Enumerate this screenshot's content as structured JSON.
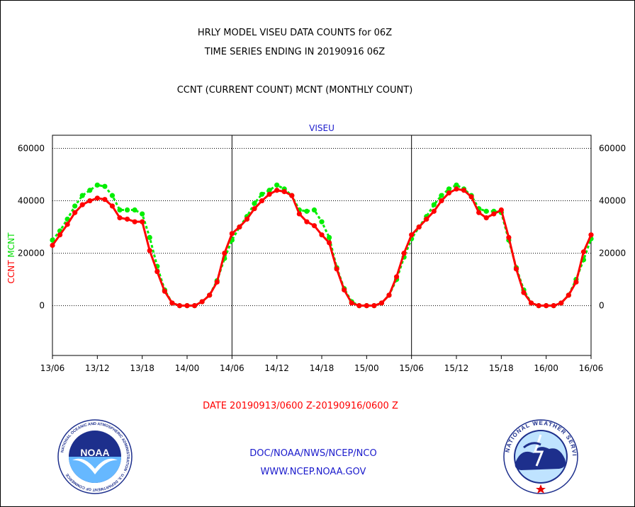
{
  "header": {
    "title_line1": "HRLY MODEL VISEU DATA COUNTS for 06Z",
    "title_line2": "TIME SERIES ENDING IN 20190916 06Z",
    "title_line3": "CCNT (CURRENT COUNT) MCNT (MONTHLY COUNT)"
  },
  "chart_data": {
    "type": "line",
    "title": "VISEU",
    "ylabel_left": [
      "CCNT",
      "MCNT"
    ],
    "ylim": [
      -19000,
      65000
    ],
    "y_ticks": [
      0,
      20000,
      40000,
      60000
    ],
    "x_tick_labels": [
      "13/06",
      "13/12",
      "13/18",
      "14/00",
      "14/06",
      "14/12",
      "14/18",
      "15/00",
      "15/06",
      "15/12",
      "15/18",
      "16/00",
      "16/06"
    ],
    "x_hours_range": [
      0,
      72
    ],
    "grid": "horizontal",
    "series": [
      {
        "name": "CCNT",
        "color": "#ff0000",
        "values": [
          23000,
          27000,
          31000,
          35500,
          38500,
          40000,
          41000,
          40500,
          38000,
          33500,
          33000,
          32000,
          32000,
          21000,
          13000,
          5500,
          1000,
          0,
          0,
          0,
          1500,
          4000,
          9000,
          20000,
          27500,
          30000,
          33000,
          37000,
          40000,
          42500,
          44000,
          43500,
          42000,
          35000,
          32000,
          30500,
          27000,
          24000,
          14000,
          6000,
          1000,
          0,
          0,
          0,
          1000,
          4000,
          11000,
          20000,
          27000,
          30000,
          33000,
          36000,
          40000,
          43000,
          44500,
          44000,
          41500,
          35500,
          33500,
          35000,
          36500,
          26000,
          14000,
          5000,
          1000,
          0,
          0,
          0,
          1000,
          4000,
          9000,
          20500,
          27000
        ]
      },
      {
        "name": "MCNT",
        "color": "#00ee00",
        "values": [
          25000,
          28500,
          33000,
          38000,
          42000,
          44000,
          46000,
          45500,
          42000,
          36500,
          36500,
          36500,
          35000,
          26000,
          15000,
          6000,
          1000,
          0,
          0,
          0,
          1500,
          4000,
          9500,
          18000,
          25000,
          30000,
          34000,
          39000,
          42500,
          44000,
          46000,
          44500,
          42000,
          36500,
          36000,
          36500,
          32000,
          26000,
          14500,
          6500,
          1500,
          0,
          0,
          0,
          1000,
          4000,
          10000,
          18500,
          25500,
          30000,
          34000,
          38500,
          42000,
          44500,
          46000,
          44500,
          42000,
          37000,
          36000,
          36000,
          35500,
          25000,
          14500,
          6000,
          1000,
          0,
          0,
          0,
          1000,
          4000,
          10000,
          17500,
          25500
        ]
      }
    ]
  },
  "footer": {
    "date_range": "DATE 20190913/0600 Z-20190916/0600 Z",
    "credit_line1": "DOC/NOAA/NWS/NCEP/NCO",
    "credit_line2": "WWW.NCEP.NOAA.GOV"
  },
  "logos": {
    "noaa": {
      "icon": "noaa-seal",
      "lettering": "NATIONAL OCEANIC AND ATMOSPHERIC ADMINISTRATION · U.S. DEPARTMENT OF COMMERCE",
      "center_text": "NOAA"
    },
    "nws": {
      "icon": "nws-seal",
      "lettering": "NATIONAL WEATHER SERVICE"
    }
  }
}
